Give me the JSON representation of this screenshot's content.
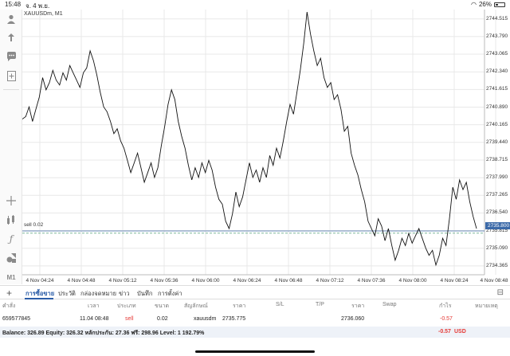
{
  "status": {
    "time": "15:48",
    "date": "จ. 4 พ.ย.",
    "battery": "26%"
  },
  "toolbar_icons": [
    "profile-icon",
    "trade-icon",
    "chat-icon",
    "new-chart-icon",
    "crosshair-icon",
    "indicators-icon",
    "function-icon",
    "objects-icon",
    "timeframe-icon"
  ],
  "toolbar": {
    "timeframe_label": "M1"
  },
  "chart": {
    "symbol_label": "XAUUSDm, M1",
    "sell_line_label": "sell 0.02",
    "current_price": "2735.800",
    "colors": {
      "price_line": "#111111",
      "bid_line": "#3c6aa8",
      "sell_line": "#7fb89a",
      "grid": "#e8e8e8"
    }
  },
  "chart_data": {
    "type": "line",
    "x_ticks": [
      "4 Nov 04:24",
      "4 Nov 04:48",
      "4 Nov 05:12",
      "4 Nov 05:36",
      "4 Nov 06:00",
      "4 Nov 06:24",
      "4 Nov 06:48",
      "4 Nov 07:12",
      "4 Nov 07:36",
      "4 Nov 08:00",
      "4 Nov 08:24",
      "4 Nov 08:48"
    ],
    "y_ticks": [
      "2744.515",
      "2743.790",
      "2743.065",
      "2742.340",
      "2741.615",
      "2740.890",
      "2740.165",
      "2739.440",
      "2738.715",
      "2737.990",
      "2737.265",
      "2736.540",
      "2735.815",
      "2735.090",
      "2734.365"
    ],
    "y_tick_values": [
      2744.515,
      2743.79,
      2743.065,
      2742.34,
      2741.615,
      2740.89,
      2740.165,
      2739.44,
      2738.715,
      2737.99,
      2737.265,
      2736.54,
      2735.815,
      2735.09,
      2734.365
    ],
    "ylim": [
      2734.0,
      2744.9
    ],
    "series": [
      {
        "values": [
          2740.4,
          2740.5,
          2740.9,
          2740.3,
          2740.8,
          2741.3,
          2742.1,
          2741.6,
          2741.9,
          2742.4,
          2742.0,
          2741.8,
          2742.3,
          2742.0,
          2742.6,
          2742.3,
          2742.0,
          2741.7,
          2742.3,
          2742.5,
          2743.2,
          2742.8,
          2742.2,
          2741.5,
          2740.9,
          2740.7,
          2740.3,
          2739.8,
          2740.0,
          2739.5,
          2739.2,
          2738.7,
          2738.2,
          2738.6,
          2739.0,
          2738.4,
          2737.8,
          2738.2,
          2738.6,
          2738.0,
          2738.4,
          2739.3,
          2740.1,
          2741.0,
          2741.6,
          2741.2,
          2740.3,
          2739.7,
          2739.2,
          2738.5,
          2737.9,
          2738.4,
          2738.0,
          2738.6,
          2738.2,
          2738.7,
          2738.3,
          2737.6,
          2737.1,
          2736.9,
          2736.2,
          2735.9,
          2736.5,
          2737.4,
          2736.8,
          2737.2,
          2737.9,
          2738.6,
          2738.0,
          2738.3,
          2737.8,
          2738.4,
          2738.0,
          2738.9,
          2738.5,
          2739.2,
          2738.8,
          2739.5,
          2740.3,
          2741.0,
          2740.6,
          2741.5,
          2742.4,
          2743.5,
          2744.8,
          2743.9,
          2743.2,
          2742.6,
          2742.9,
          2742.1,
          2741.7,
          2741.9,
          2741.2,
          2741.4,
          2740.8,
          2739.9,
          2740.1,
          2739.0,
          2738.5,
          2738.1,
          2737.5,
          2737.0,
          2736.2,
          2735.9,
          2735.6,
          2736.3,
          2736.0,
          2735.4,
          2735.9,
          2735.2,
          2734.6,
          2735.0,
          2735.5,
          2735.2,
          2735.7,
          2735.3,
          2735.6,
          2735.9,
          2735.5,
          2735.1,
          2734.8,
          2735.0,
          2734.4,
          2734.8,
          2735.5,
          2735.2,
          2736.3,
          2737.6,
          2737.1,
          2737.9,
          2737.5,
          2737.8,
          2737.0,
          2736.4,
          2735.9
        ]
      }
    ],
    "current_price_line": 2735.8,
    "sell_price_line": 2735.775
  },
  "tabs": {
    "add_label": "+",
    "items": [
      "การซื้อขาย",
      "ประวัติ",
      "กล่องจดหมาย",
      "ข่าว",
      "บันทึก",
      "การตั้งค่า"
    ]
  },
  "table": {
    "headers": [
      "คำสั่ง",
      "เวลา",
      "ประเภท",
      "ขนาด",
      "สัญลักษณ์",
      "ราคา",
      "S/L",
      "T/P",
      "ราคา",
      "Swap",
      "กำไร",
      "หมายเหตุ"
    ],
    "row": [
      "659577845",
      "11.04 08:48",
      "sell",
      "0.02",
      "xauusdm",
      "2735.775",
      "",
      "",
      "2736.060",
      "",
      "-0.57",
      ""
    ]
  },
  "balance": {
    "text": "Balance: 326.89 Equity: 326.32 หลักประกัน: 27.36 ฟรี: 298.96 Level: 1 192.79%",
    "profit": "-0.57",
    "currency": "USD"
  }
}
